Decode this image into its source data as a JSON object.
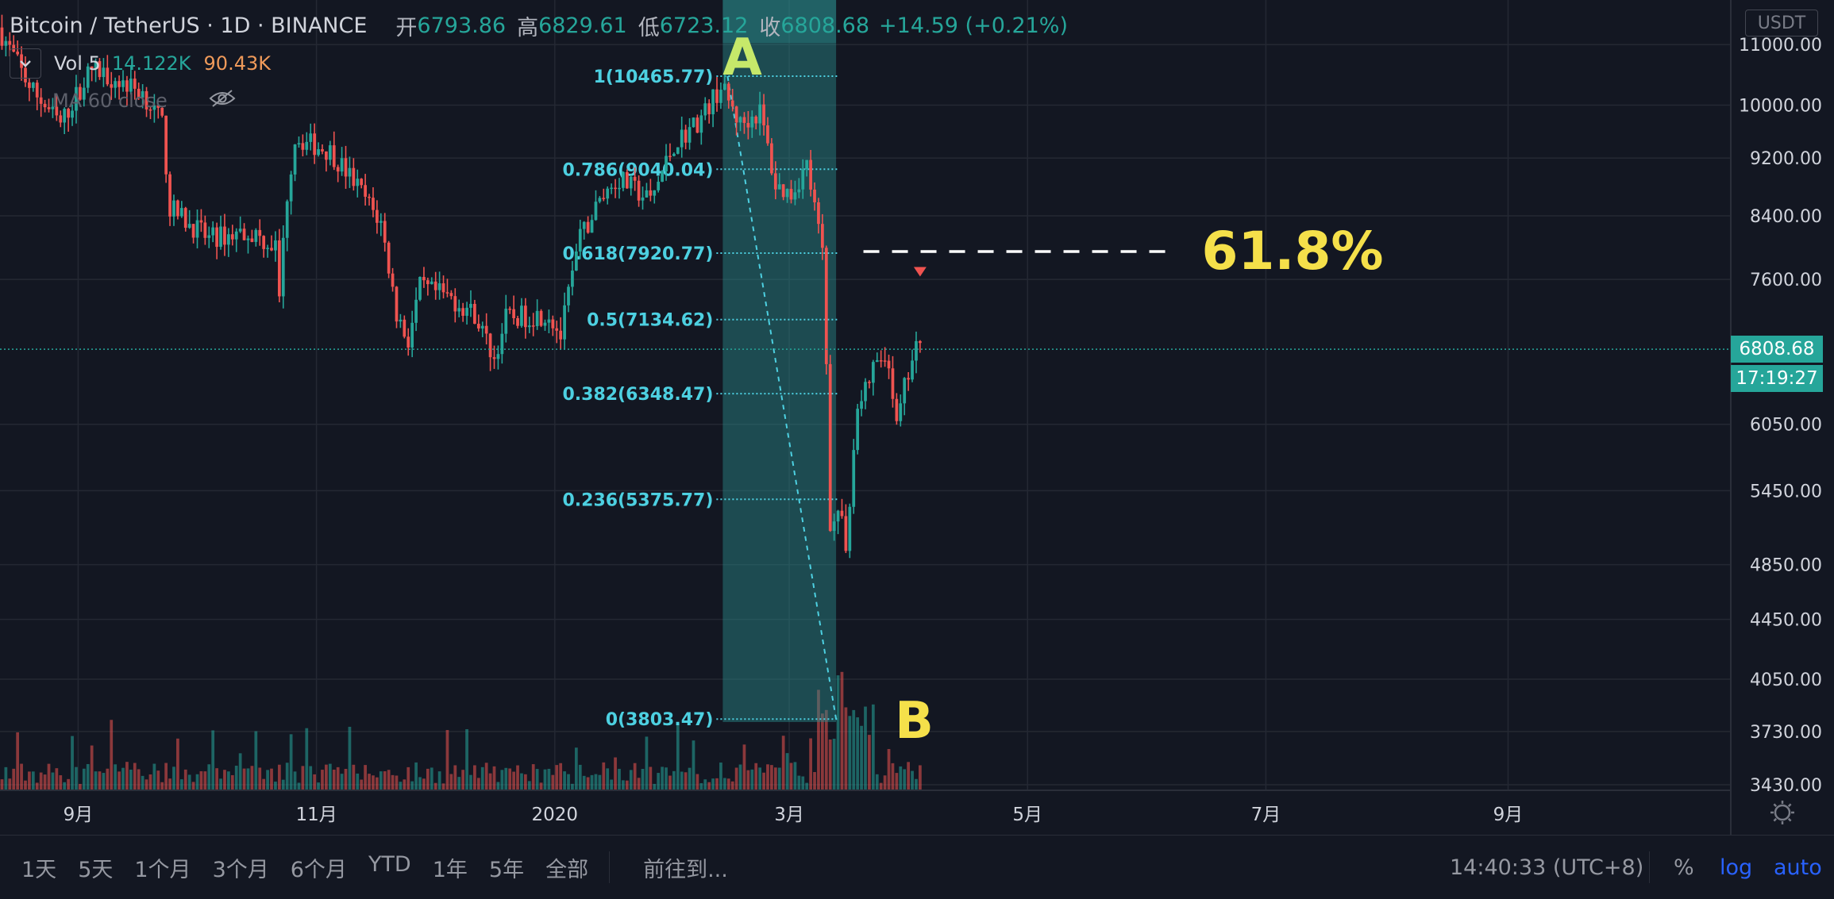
{
  "header": {
    "symbol": "Bitcoin / TetherUS · 1D · BINANCE",
    "open_label": "开",
    "open": "6793.86",
    "high_label": "高",
    "high": "6829.61",
    "low_label": "低",
    "low": "6723.12",
    "close_label": "收",
    "close": "6808.68",
    "change": "+14.59 (+0.21%)"
  },
  "volume": {
    "label": "Vol 5",
    "value1": "14.122K",
    "value2": "90.43K"
  },
  "ma": {
    "label": "MA 60 close"
  },
  "currency": "USDT",
  "last_price": "6808.68",
  "countdown": "17:19:27",
  "bottom": {
    "ranges": [
      "1天",
      "5天",
      "1个月",
      "3个月",
      "6个月",
      "YTD",
      "1年",
      "5年",
      "全部"
    ],
    "goto": "前往到...",
    "time": "14:40:33 (UTC+8)",
    "percent": "%",
    "log": "log",
    "auto": "auto"
  },
  "colors": {
    "up": "#26a69a",
    "down": "#ef5350",
    "fib": "#4dd0e1",
    "highlight": "#f5e04a",
    "marker_A": "#c6e86a"
  },
  "chart_data": {
    "type": "candlestick",
    "title": "Bitcoin / TetherUS 1D BINANCE",
    "yscale": "log",
    "ylim": [
      3400,
      11800
    ],
    "y_ticks": [
      11000,
      10000,
      9200,
      8400,
      7600,
      6050,
      5450,
      4850,
      4450,
      4050,
      3730,
      3430
    ],
    "y_tick_labels": [
      "11000.00",
      "10000.00",
      "9200.00",
      "8400.00",
      "7600.00",
      "6050.00",
      "5450.00",
      "4850.00",
      "4450.00",
      "4050.00",
      "3730.00",
      "3430.00"
    ],
    "x_start": "2019-08-12",
    "x_end": "2020-10-28",
    "x_ticks": [
      {
        "date": "2019-09-01",
        "label": "9月"
      },
      {
        "date": "2019-11-01",
        "label": "11月"
      },
      {
        "date": "2020-01-01",
        "label": "2020"
      },
      {
        "date": "2020-03-01",
        "label": "3月"
      },
      {
        "date": "2020-05-01",
        "label": "5月"
      },
      {
        "date": "2020-07-01",
        "label": "7月"
      },
      {
        "date": "2020-09-01",
        "label": "9月"
      }
    ],
    "price_path": [
      [
        "2019-08-12",
        11300
      ],
      [
        "2019-08-20",
        10300
      ],
      [
        "2019-08-28",
        9700
      ],
      [
        "2019-09-05",
        10600
      ],
      [
        "2019-09-18",
        10200
      ],
      [
        "2019-09-23",
        9700
      ],
      [
        "2019-09-25",
        8500
      ],
      [
        "2019-10-05",
        8100
      ],
      [
        "2019-10-15",
        8200
      ],
      [
        "2019-10-22",
        8000
      ],
      [
        "2019-10-23",
        7400
      ],
      [
        "2019-10-25",
        8700
      ],
      [
        "2019-10-27",
        9500
      ],
      [
        "2019-11-05",
        9300
      ],
      [
        "2019-11-12",
        8800
      ],
      [
        "2019-11-18",
        8300
      ],
      [
        "2019-11-22",
        7200
      ],
      [
        "2019-11-25",
        6900
      ],
      [
        "2019-11-28",
        7500
      ],
      [
        "2019-12-05",
        7400
      ],
      [
        "2019-12-12",
        7200
      ],
      [
        "2019-12-17",
        6700
      ],
      [
        "2019-12-20",
        7150
      ],
      [
        "2019-12-31",
        7200
      ],
      [
        "2020-01-03",
        6950
      ],
      [
        "2020-01-08",
        8100
      ],
      [
        "2020-01-14",
        8700
      ],
      [
        "2020-01-18",
        8900
      ],
      [
        "2020-01-26",
        8600
      ],
      [
        "2020-02-01",
        9400
      ],
      [
        "2020-02-08",
        9800
      ],
      [
        "2020-02-13",
        10300
      ],
      [
        "2020-02-18",
        9700
      ],
      [
        "2020-02-23",
        9900
      ],
      [
        "2020-02-27",
        8800
      ],
      [
        "2020-03-02",
        8700
      ],
      [
        "2020-03-06",
        9100
      ],
      [
        "2020-03-10",
        7900
      ],
      [
        "2020-03-12",
        5200
      ],
      [
        "2020-03-14",
        5300
      ],
      [
        "2020-03-16",
        5000
      ],
      [
        "2020-03-19",
        6200
      ],
      [
        "2020-03-24",
        6700
      ],
      [
        "2020-03-27",
        6700
      ],
      [
        "2020-03-29",
        6000
      ],
      [
        "2020-03-31",
        6400
      ],
      [
        "2020-04-03",
        6800
      ]
    ],
    "fib_levels": [
      {
        "ratio": "1",
        "price": 10465.77,
        "label": "1(10465.77)"
      },
      {
        "ratio": "0.786",
        "price": 9040.04,
        "label": "0.786(9040.04)"
      },
      {
        "ratio": "0.618",
        "price": 7920.77,
        "label": "0.618(7920.77)"
      },
      {
        "ratio": "0.5",
        "price": 7134.62,
        "label": "0.5(7134.62)"
      },
      {
        "ratio": "0.382",
        "price": 6348.47,
        "label": "0.382(6348.47)"
      },
      {
        "ratio": "0.236",
        "price": 5375.77,
        "label": "0.236(5375.77)"
      },
      {
        "ratio": "0",
        "price": 3803.47,
        "label": "0(3803.47)"
      }
    ],
    "fib_start": "2020-02-13",
    "fib_end": "2020-03-13",
    "annotations": [
      {
        "text": "A",
        "date": "2020-02-18",
        "price": 10465.77
      },
      {
        "text": "B",
        "date": "2020-04-02",
        "price": 3803.47
      },
      {
        "text": "61.8%",
        "date": "2020-03-20",
        "price": 7920.77
      }
    ]
  }
}
